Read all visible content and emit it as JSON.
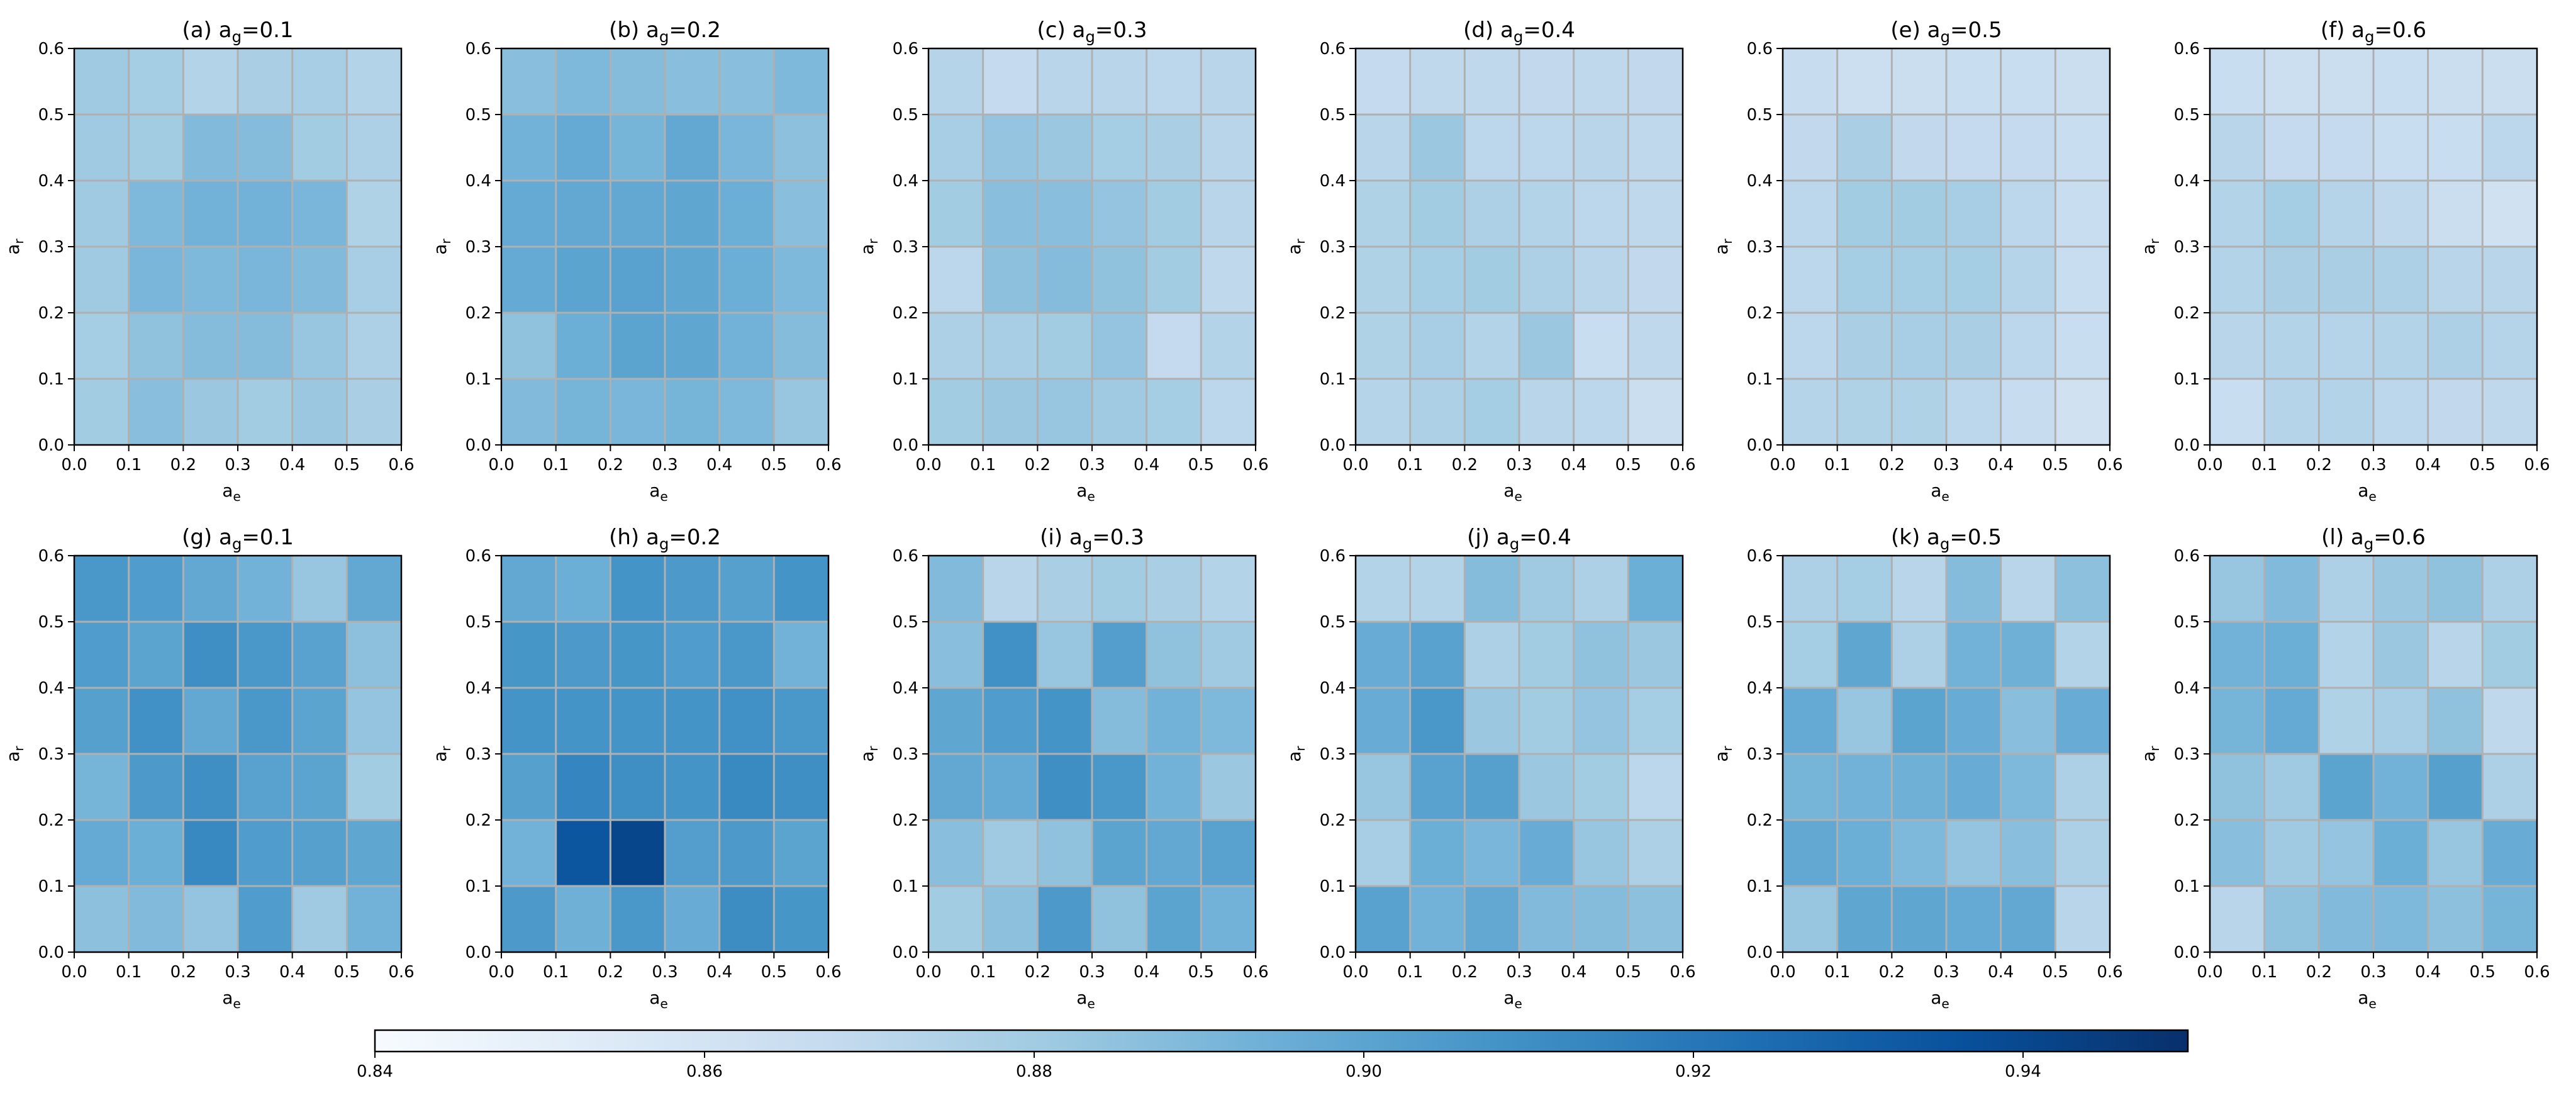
{
  "chart_data": {
    "type": "heatmap",
    "x_label": "a",
    "x_label_sub": "e",
    "y_label": "a",
    "y_label_sub": "r",
    "param_name": "a",
    "param_sub": "g",
    "x_ticks": [
      "0.0",
      "0.1",
      "0.2",
      "0.3",
      "0.4",
      "0.5",
      "0.6"
    ],
    "y_ticks": [
      "0.0",
      "0.1",
      "0.2",
      "0.3",
      "0.4",
      "0.5",
      "0.6"
    ],
    "x_range": [
      0,
      0.6
    ],
    "y_range": [
      0,
      0.6
    ],
    "grid": true,
    "colormap": "Blues",
    "colormap_stops": [
      "#f7fbff",
      "#deebf7",
      "#c6dbef",
      "#9ecae1",
      "#6baed6",
      "#4292c6",
      "#2171b5",
      "#08519c",
      "#08306b"
    ],
    "grid_color": "#b0b0b0",
    "colorbar": {
      "min": 0.84,
      "max": 0.95,
      "ticks": [
        0.84,
        0.86,
        0.88,
        0.9,
        0.92,
        0.94
      ],
      "tick_labels": [
        "0.84",
        "0.86",
        "0.88",
        "0.90",
        "0.92",
        "0.94"
      ],
      "orientation": "horizontal",
      "placement": "bottom"
    },
    "rows_order": "top-to-bottom (a_r 0.5-0.6 first), columns a_e 0.0-0.6 left-to-right",
    "panels": [
      {
        "label": "(a)",
        "param": "0.1",
        "values": [
          [
            0.881,
            0.879,
            0.874,
            0.877,
            0.878,
            0.874
          ],
          [
            0.881,
            0.88,
            0.889,
            0.888,
            0.88,
            0.876
          ],
          [
            0.881,
            0.89,
            0.893,
            0.893,
            0.891,
            0.875
          ],
          [
            0.881,
            0.891,
            0.89,
            0.891,
            0.889,
            0.878
          ],
          [
            0.879,
            0.885,
            0.888,
            0.888,
            0.883,
            0.876
          ],
          [
            0.88,
            0.887,
            0.882,
            0.88,
            0.882,
            0.877
          ]
        ]
      },
      {
        "label": "(b)",
        "param": "0.2",
        "values": [
          [
            0.887,
            0.89,
            0.888,
            0.887,
            0.887,
            0.89
          ],
          [
            0.893,
            0.897,
            0.892,
            0.898,
            0.891,
            0.886
          ],
          [
            0.897,
            0.898,
            0.898,
            0.899,
            0.895,
            0.887
          ],
          [
            0.897,
            0.9,
            0.901,
            0.899,
            0.895,
            0.89
          ],
          [
            0.885,
            0.895,
            0.9,
            0.899,
            0.893,
            0.888
          ],
          [
            0.889,
            0.892,
            0.891,
            0.892,
            0.89,
            0.883
          ]
        ]
      },
      {
        "label": "(c)",
        "param": "0.3",
        "values": [
          [
            0.873,
            0.868,
            0.872,
            0.872,
            0.871,
            0.872
          ],
          [
            0.878,
            0.884,
            0.882,
            0.879,
            0.877,
            0.872
          ],
          [
            0.88,
            0.887,
            0.887,
            0.884,
            0.88,
            0.872
          ],
          [
            0.871,
            0.886,
            0.888,
            0.885,
            0.88,
            0.87
          ],
          [
            0.876,
            0.878,
            0.88,
            0.884,
            0.868,
            0.874
          ],
          [
            0.88,
            0.882,
            0.883,
            0.881,
            0.879,
            0.871
          ]
        ]
      },
      {
        "label": "(d)",
        "param": "0.4",
        "values": [
          [
            0.868,
            0.87,
            0.87,
            0.869,
            0.87,
            0.869
          ],
          [
            0.872,
            0.882,
            0.871,
            0.871,
            0.872,
            0.87
          ],
          [
            0.875,
            0.88,
            0.876,
            0.874,
            0.871,
            0.87
          ],
          [
            0.875,
            0.879,
            0.88,
            0.876,
            0.872,
            0.869
          ],
          [
            0.875,
            0.878,
            0.874,
            0.882,
            0.866,
            0.87
          ],
          [
            0.873,
            0.876,
            0.879,
            0.872,
            0.871,
            0.865
          ]
        ]
      },
      {
        "label": "(e)",
        "param": "0.5",
        "values": [
          [
            0.867,
            0.864,
            0.865,
            0.866,
            0.866,
            0.865
          ],
          [
            0.869,
            0.877,
            0.869,
            0.868,
            0.868,
            0.866
          ],
          [
            0.871,
            0.88,
            0.88,
            0.878,
            0.871,
            0.866
          ],
          [
            0.871,
            0.879,
            0.879,
            0.879,
            0.873,
            0.866
          ],
          [
            0.871,
            0.877,
            0.878,
            0.877,
            0.871,
            0.866
          ],
          [
            0.873,
            0.875,
            0.875,
            0.871,
            0.867,
            0.862
          ]
        ]
      },
      {
        "label": "(f)",
        "param": "0.6",
        "values": [
          [
            0.866,
            0.864,
            0.865,
            0.866,
            0.865,
            0.865
          ],
          [
            0.872,
            0.868,
            0.868,
            0.866,
            0.866,
            0.871
          ],
          [
            0.874,
            0.879,
            0.873,
            0.87,
            0.865,
            0.862
          ],
          [
            0.874,
            0.877,
            0.877,
            0.876,
            0.872,
            0.872
          ],
          [
            0.872,
            0.874,
            0.873,
            0.874,
            0.876,
            0.873
          ],
          [
            0.866,
            0.873,
            0.874,
            0.871,
            0.869,
            0.87
          ]
        ]
      },
      {
        "label": "(g)",
        "param": "0.1",
        "values": [
          [
            0.906,
            0.904,
            0.898,
            0.893,
            0.883,
            0.898
          ],
          [
            0.904,
            0.9,
            0.91,
            0.906,
            0.901,
            0.886
          ],
          [
            0.902,
            0.909,
            0.898,
            0.906,
            0.9,
            0.884
          ],
          [
            0.892,
            0.905,
            0.91,
            0.901,
            0.9,
            0.88
          ],
          [
            0.897,
            0.895,
            0.913,
            0.904,
            0.902,
            0.899
          ],
          [
            0.886,
            0.889,
            0.884,
            0.904,
            0.881,
            0.893
          ]
        ]
      },
      {
        "label": "(h)",
        "param": "0.2",
        "values": [
          [
            0.898,
            0.895,
            0.908,
            0.905,
            0.902,
            0.908
          ],
          [
            0.907,
            0.905,
            0.907,
            0.904,
            0.906,
            0.893
          ],
          [
            0.908,
            0.908,
            0.908,
            0.908,
            0.909,
            0.906
          ],
          [
            0.902,
            0.914,
            0.91,
            0.908,
            0.912,
            0.91
          ],
          [
            0.893,
            0.934,
            0.941,
            0.903,
            0.905,
            0.9
          ],
          [
            0.905,
            0.894,
            0.906,
            0.896,
            0.911,
            0.907
          ]
        ]
      },
      {
        "label": "(i)",
        "param": "0.3",
        "values": [
          [
            0.889,
            0.872,
            0.877,
            0.88,
            0.877,
            0.874
          ],
          [
            0.887,
            0.909,
            0.883,
            0.903,
            0.885,
            0.881
          ],
          [
            0.899,
            0.904,
            0.908,
            0.888,
            0.893,
            0.89
          ],
          [
            0.898,
            0.897,
            0.91,
            0.906,
            0.893,
            0.882
          ],
          [
            0.887,
            0.881,
            0.885,
            0.9,
            0.898,
            0.901
          ],
          [
            0.88,
            0.886,
            0.905,
            0.885,
            0.9,
            0.893
          ]
        ]
      },
      {
        "label": "(j)",
        "param": "0.4",
        "values": [
          [
            0.874,
            0.874,
            0.888,
            0.881,
            0.876,
            0.895
          ],
          [
            0.896,
            0.901,
            0.876,
            0.88,
            0.885,
            0.882
          ],
          [
            0.896,
            0.906,
            0.882,
            0.88,
            0.884,
            0.879
          ],
          [
            0.883,
            0.901,
            0.902,
            0.882,
            0.88,
            0.871
          ],
          [
            0.878,
            0.895,
            0.891,
            0.896,
            0.883,
            0.876
          ],
          [
            0.901,
            0.893,
            0.898,
            0.889,
            0.888,
            0.886
          ]
        ]
      },
      {
        "label": "(k)",
        "param": "0.5",
        "values": [
          [
            0.876,
            0.879,
            0.872,
            0.888,
            0.872,
            0.886
          ],
          [
            0.879,
            0.899,
            0.876,
            0.893,
            0.894,
            0.874
          ],
          [
            0.897,
            0.883,
            0.9,
            0.896,
            0.887,
            0.896
          ],
          [
            0.892,
            0.893,
            0.894,
            0.896,
            0.89,
            0.876
          ],
          [
            0.898,
            0.895,
            0.89,
            0.884,
            0.887,
            0.876
          ],
          [
            0.883,
            0.899,
            0.899,
            0.897,
            0.898,
            0.872
          ]
        ]
      },
      {
        "label": "(l)",
        "param": "0.6",
        "values": [
          [
            0.883,
            0.889,
            0.876,
            0.882,
            0.885,
            0.876
          ],
          [
            0.893,
            0.895,
            0.874,
            0.882,
            0.872,
            0.88
          ],
          [
            0.892,
            0.897,
            0.875,
            0.878,
            0.885,
            0.87
          ],
          [
            0.885,
            0.881,
            0.9,
            0.893,
            0.902,
            0.876
          ],
          [
            0.887,
            0.881,
            0.884,
            0.895,
            0.883,
            0.896
          ],
          [
            0.872,
            0.885,
            0.889,
            0.89,
            0.886,
            0.892
          ]
        ]
      }
    ]
  }
}
